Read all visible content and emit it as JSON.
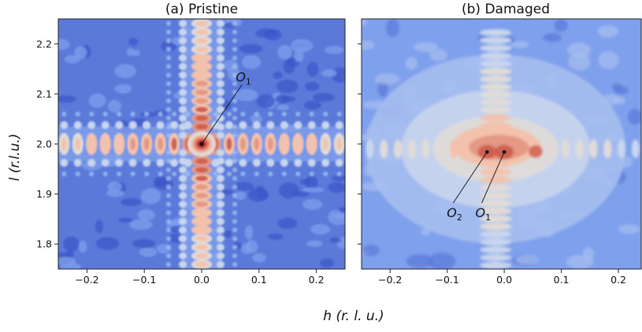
{
  "chart_data": [
    {
      "type": "heatmap",
      "title": "(a) Pristine",
      "xlabel": "h (r. l. u.)",
      "ylabel": "l (r.l.u.)",
      "xlim": [
        -0.25,
        0.25
      ],
      "ylim": [
        1.75,
        2.25
      ],
      "x_ticks": [
        "−0.2",
        "−0.1",
        "0.0",
        "0.1",
        "0.2"
      ],
      "y_ticks": [
        "1.8",
        "1.9",
        "2.0",
        "2.1",
        "2.2"
      ],
      "colormap": "coolwarm",
      "peak": {
        "h": 0.0,
        "l": 2.0
      },
      "annotations": [
        {
          "label": "O",
          "sub": "1",
          "point": [
            0.0,
            2.0
          ],
          "text_at": [
            0.065,
            2.125
          ]
        }
      ]
    },
    {
      "type": "heatmap",
      "title": "(b) Damaged",
      "xlim": [
        -0.25,
        0.24
      ],
      "ylim": [
        1.75,
        2.25
      ],
      "x_ticks": [
        "−0.2",
        "−0.1",
        "0.0",
        "0.1",
        "0.2"
      ],
      "colormap": "coolwarm",
      "peaks": [
        {
          "h": -0.03,
          "l": 1.984
        },
        {
          "h": 0.0,
          "l": 1.984
        }
      ],
      "annotations": [
        {
          "label": "O",
          "sub": "2",
          "point": [
            -0.03,
            1.984
          ],
          "text_at": [
            -0.095,
            1.86
          ]
        },
        {
          "label": "O",
          "sub": "1",
          "point": [
            0.0,
            1.984
          ],
          "text_at": [
            -0.045,
            1.86
          ]
        }
      ]
    }
  ]
}
